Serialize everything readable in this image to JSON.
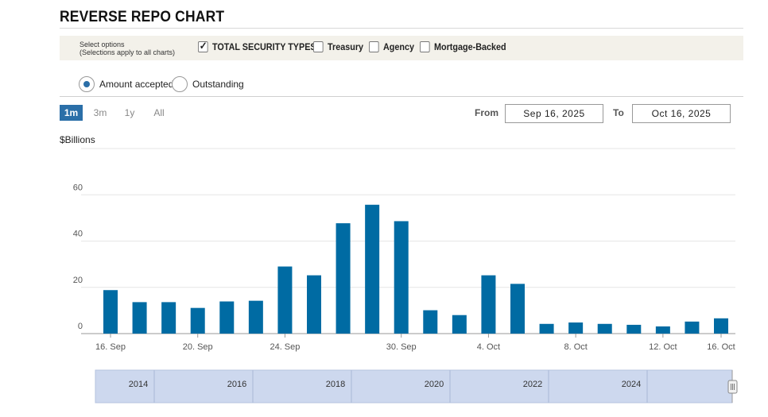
{
  "title": "REVERSE REPO CHART",
  "options": {
    "caption_line1": "Select options",
    "caption_line2": "(Selections apply to all charts)",
    "checkboxes": [
      {
        "label": "TOTAL SECURITY TYPES",
        "checked": true
      },
      {
        "label": "Treasury",
        "checked": false
      },
      {
        "label": "Agency",
        "checked": false
      },
      {
        "label": "Mortgage-Backed",
        "checked": false
      }
    ]
  },
  "radios": [
    {
      "label": "Amount accepted",
      "selected": true
    },
    {
      "label": "Outstanding",
      "selected": false
    }
  ],
  "range_buttons": [
    {
      "label": "1m",
      "active": true
    },
    {
      "label": "3m",
      "active": false
    },
    {
      "label": "1y",
      "active": false
    },
    {
      "label": "All",
      "active": false
    }
  ],
  "dates": {
    "from_label": "From",
    "from_value": "Sep 16, 2025",
    "to_label": "To",
    "to_value": "Oct 16, 2025"
  },
  "accent_color": "#006ba3",
  "chart_data": {
    "type": "bar",
    "ylabel": "$Billions",
    "ylim": [
      0,
      80
    ],
    "yticks": [
      0,
      20,
      40,
      60
    ],
    "grid": true,
    "x": [
      "2025-09-16",
      "2025-09-17",
      "2025-09-18",
      "2025-09-19",
      "2025-09-22",
      "2025-09-23",
      "2025-09-24",
      "2025-09-25",
      "2025-09-26",
      "2025-09-29",
      "2025-09-30",
      "2025-10-01",
      "2025-10-02",
      "2025-10-03",
      "2025-10-06",
      "2025-10-07",
      "2025-10-08",
      "2025-10-09",
      "2025-10-10",
      "2025-10-14",
      "2025-10-15",
      "2025-10-16"
    ],
    "values": [
      18.8,
      13.6,
      13.6,
      11.1,
      13.9,
      14.2,
      29.0,
      25.2,
      47.7,
      55.7,
      48.6,
      10.1,
      8.0,
      25.2,
      21.5,
      4.2,
      4.8,
      4.2,
      3.8,
      3.1,
      5.2,
      6.6
    ],
    "x_tick_labels": [
      "16. Sep",
      "20. Sep",
      "24. Sep",
      "30. Sep",
      "4. Oct",
      "8. Oct",
      "12. Oct",
      "16. Oct"
    ],
    "navigator_labels": [
      "2014",
      "2016",
      "2018",
      "2020",
      "2022",
      "2024"
    ]
  }
}
